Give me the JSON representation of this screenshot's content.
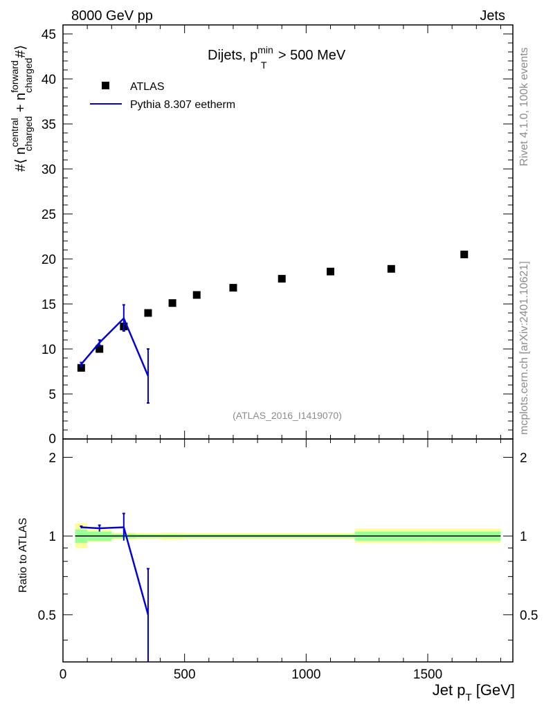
{
  "header": {
    "left": "8000 GeV pp",
    "right": "Jets",
    "side_top": "Rivet 4.1.0,  100k events",
    "side_bottom": "mcplots.cern.ch [arXiv:2401.10621]"
  },
  "colors": {
    "data": "#000000",
    "mc": "#0000dd",
    "band_inner": "#99ff99",
    "band_outer": "#ffff99",
    "watermark": "#8c8c8c"
  },
  "chart_data": {
    "type": "scatter",
    "title": "Dijets, p_T^min > 500 MeV",
    "title_parts": {
      "main": "Dijets, p",
      "sub": "T",
      "sup": "min",
      "rest": " > 500 MeV"
    },
    "watermark": "(ATLAS_2016_I1419070)",
    "xlabel": "Jet p_T [GeV]",
    "xlabel_parts": {
      "main": "Jet p",
      "sub": "T",
      "rest": " [GeV]"
    },
    "ylabel": "#⟨ n_charged^central + n_charged^forward #⟩",
    "ylabel_parts": {
      "hash": "#⟨ n",
      "sub1": "charged",
      "sup1": "central",
      "plus": " + n",
      "sub2": "charged",
      "sup2": "forward",
      "close": "#⟩"
    },
    "ratio_ylabel": "Ratio to ATLAS",
    "xlim": [
      0,
      1850
    ],
    "ylim": [
      0,
      46
    ],
    "ratio_ylim": [
      0.33,
      2.35
    ],
    "x_ticks": [
      0,
      500,
      1000,
      1500
    ],
    "x_tick_labels": [
      "0",
      "500",
      "1000",
      "1500"
    ],
    "y_ticks": [
      5,
      10,
      15,
      20,
      25,
      30,
      35,
      40,
      45
    ],
    "y_tick_labels": [
      "5",
      "10",
      "15",
      "20",
      "25",
      "30",
      "35",
      "40",
      "45"
    ],
    "y_zero_label": "0",
    "ratio_ticks": [
      0.5,
      1,
      2
    ],
    "ratio_tick_labels": [
      "0.5",
      "1",
      "2"
    ],
    "legend": [
      {
        "label": "ATLAS",
        "marker": "square"
      },
      {
        "label": "Pythia 8.307 eetherm",
        "marker": "line"
      }
    ],
    "series": [
      {
        "name": "ATLAS",
        "x": [
          75,
          150,
          250,
          350,
          450,
          550,
          700,
          900,
          1100,
          1350,
          1650
        ],
        "y": [
          7.9,
          10.0,
          12.5,
          14.0,
          15.1,
          16.0,
          16.8,
          17.8,
          18.6,
          18.9,
          20.5
        ],
        "xerr_lo": [
          25,
          50,
          50,
          50,
          50,
          50,
          100,
          100,
          100,
          150,
          150
        ],
        "xerr_hi": [
          25,
          50,
          50,
          50,
          50,
          50,
          100,
          100,
          100,
          150,
          150
        ]
      },
      {
        "name": "Pythia 8.307 eetherm",
        "x": [
          75,
          150,
          250,
          350
        ],
        "y": [
          8.3,
          10.7,
          13.4,
          7.0
        ],
        "yerr_lo": [
          0.2,
          0.3,
          1.4,
          3.0
        ],
        "yerr_hi": [
          0.2,
          0.3,
          1.5,
          3.0
        ]
      }
    ],
    "ratio": {
      "x": [
        75,
        150,
        250,
        350
      ],
      "y": [
        1.08,
        1.07,
        1.08,
        0.5
      ],
      "yerr_lo": [
        0.01,
        0.03,
        0.12,
        0.25
      ],
      "yerr_hi": [
        0.01,
        0.03,
        0.14,
        0.25
      ]
    },
    "ratio_bands": [
      {
        "x0": 50,
        "x1": 100,
        "inner": [
          0.94,
          1.06
        ],
        "outer": [
          0.9,
          1.12
        ]
      },
      {
        "x0": 100,
        "x1": 200,
        "inner": [
          0.96,
          1.04
        ],
        "outer": [
          0.95,
          1.06
        ]
      },
      {
        "x0": 200,
        "x1": 300,
        "inner": [
          0.98,
          1.02
        ],
        "outer": [
          0.97,
          1.03
        ]
      },
      {
        "x0": 300,
        "x1": 400,
        "inner": [
          0.985,
          1.015
        ],
        "outer": [
          0.975,
          1.025
        ]
      },
      {
        "x0": 400,
        "x1": 500,
        "inner": [
          0.985,
          1.015
        ],
        "outer": [
          0.97,
          1.03
        ]
      },
      {
        "x0": 500,
        "x1": 600,
        "inner": [
          0.985,
          1.015
        ],
        "outer": [
          0.975,
          1.025
        ]
      },
      {
        "x0": 600,
        "x1": 800,
        "inner": [
          0.985,
          1.015
        ],
        "outer": [
          0.975,
          1.025
        ]
      },
      {
        "x0": 800,
        "x1": 1000,
        "inner": [
          0.985,
          1.015
        ],
        "outer": [
          0.975,
          1.025
        ]
      },
      {
        "x0": 1000,
        "x1": 1200,
        "inner": [
          0.985,
          1.015
        ],
        "outer": [
          0.975,
          1.025
        ]
      },
      {
        "x0": 1200,
        "x1": 1500,
        "inner": [
          0.96,
          1.04
        ],
        "outer": [
          0.94,
          1.07
        ]
      },
      {
        "x0": 1500,
        "x1": 1800,
        "inner": [
          0.96,
          1.04
        ],
        "outer": [
          0.94,
          1.07
        ]
      }
    ]
  }
}
